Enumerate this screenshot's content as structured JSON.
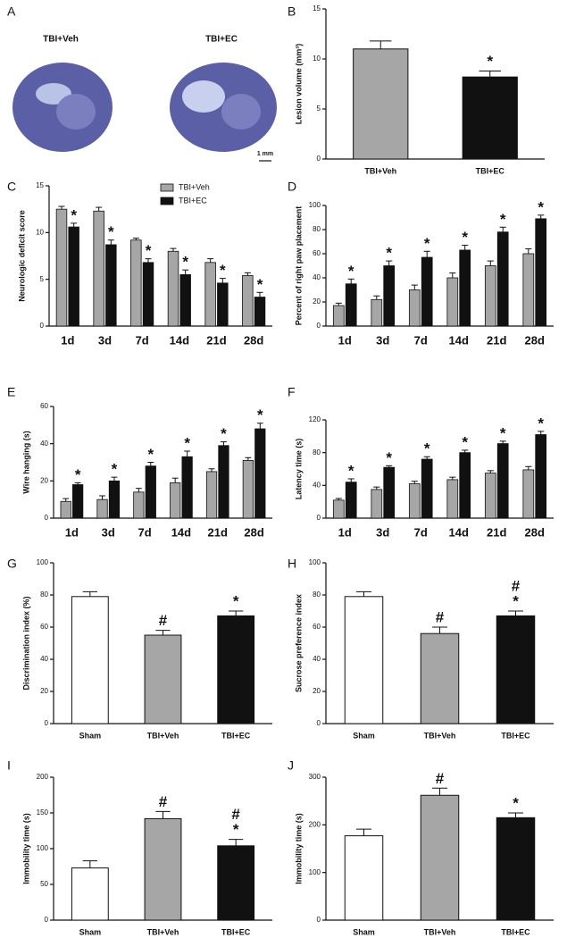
{
  "panel_a": {
    "panel_label": "A",
    "captions": [
      "TBI+Veh",
      "TBI+EC"
    ],
    "scale_bar": "1 mm"
  },
  "chart_data": [
    {
      "type": "bar",
      "panel_label": "B",
      "ylabel": "Lesion volume (mm³)",
      "categories": [
        "TBI+Veh",
        "TBI+EC"
      ],
      "values": [
        11,
        8.2
      ],
      "errors": [
        0.8,
        0.6
      ],
      "colors": [
        "#a6a6a6",
        "#111111"
      ],
      "annotations": [
        null,
        [
          "*"
        ]
      ],
      "ylim": [
        0,
        15
      ],
      "yticks": [
        0,
        5,
        10,
        15
      ]
    },
    {
      "type": "grouped-bar",
      "panel_label": "C",
      "ylabel": "Neurologic deficit score",
      "categories": [
        "1d",
        "3d",
        "7d",
        "14d",
        "21d",
        "28d"
      ],
      "legend": "top",
      "series": [
        {
          "name": "TBI+Veh",
          "color": "#a6a6a6",
          "values": [
            12.5,
            12.3,
            9.2,
            8,
            6.8,
            5.4
          ],
          "errors": [
            0.3,
            0.4,
            0.2,
            0.3,
            0.4,
            0.3
          ],
          "annotations": null
        },
        {
          "name": "TBI+EC",
          "color": "#111111",
          "values": [
            10.6,
            8.7,
            6.8,
            5.5,
            4.6,
            3.1
          ],
          "errors": [
            0.4,
            0.5,
            0.4,
            0.5,
            0.5,
            0.5
          ],
          "annotations": [
            "*",
            "*",
            "*",
            "*",
            "*",
            "*"
          ]
        }
      ],
      "ylim": [
        0,
        15
      ],
      "yticks": [
        0,
        5,
        10,
        15
      ]
    },
    {
      "type": "grouped-bar",
      "panel_label": "D",
      "ylabel": "Percent of right paw placement",
      "categories": [
        "1d",
        "3d",
        "7d",
        "14d",
        "21d",
        "28d"
      ],
      "series": [
        {
          "name": "TBI+Veh",
          "color": "#a6a6a6",
          "values": [
            17,
            22,
            30,
            40,
            50,
            60
          ],
          "errors": [
            2,
            3,
            4,
            4,
            4,
            4
          ],
          "annotations": null
        },
        {
          "name": "TBI+EC",
          "color": "#111111",
          "values": [
            35,
            50,
            57,
            63,
            78,
            89
          ],
          "errors": [
            4,
            4,
            5,
            4,
            4,
            3
          ],
          "annotations": [
            "*",
            "*",
            "*",
            "*",
            "*",
            "*"
          ]
        }
      ],
      "ylim": [
        0,
        100
      ],
      "yticks": [
        0,
        20,
        40,
        60,
        80,
        100
      ]
    },
    {
      "type": "grouped-bar",
      "panel_label": "E",
      "ylabel": "Wire hanging (s)",
      "categories": [
        "1d",
        "3d",
        "7d",
        "14d",
        "21d",
        "28d"
      ],
      "series": [
        {
          "name": "TBI+Veh",
          "color": "#a6a6a6",
          "values": [
            9,
            10,
            14,
            19,
            25,
            31
          ],
          "errors": [
            1.5,
            2,
            2,
            2.5,
            1.5,
            1.5
          ],
          "annotations": null
        },
        {
          "name": "TBI+EC",
          "color": "#111111",
          "values": [
            18,
            20,
            28,
            33,
            39,
            48
          ],
          "errors": [
            1,
            2,
            2,
            3,
            2,
            3
          ],
          "annotations": [
            "*",
            "*",
            "*",
            "*",
            "*",
            "*"
          ]
        }
      ],
      "ylim": [
        0,
        60
      ],
      "yticks": [
        0,
        20,
        40,
        60
      ]
    },
    {
      "type": "grouped-bar",
      "panel_label": "F",
      "ylabel": "Latency time (s)",
      "categories": [
        "1d",
        "3d",
        "7d",
        "14d",
        "21d",
        "28d"
      ],
      "series": [
        {
          "name": "TBI+Veh",
          "color": "#a6a6a6",
          "values": [
            22,
            35,
            42,
            47,
            55,
            59
          ],
          "errors": [
            2,
            3,
            3,
            3,
            3,
            4
          ],
          "annotations": null
        },
        {
          "name": "TBI+EC",
          "color": "#111111",
          "values": [
            44,
            62,
            72,
            80,
            91,
            102
          ],
          "errors": [
            4,
            2,
            3,
            3,
            3,
            4
          ],
          "annotations": [
            "*",
            "*",
            "*",
            "*",
            "*",
            "*"
          ]
        }
      ],
      "ylim": [
        0,
        120
      ],
      "yticks": [
        0,
        40,
        80,
        120
      ]
    },
    {
      "type": "bar",
      "panel_label": "G",
      "ylabel": "Discrimination index (%)",
      "categories": [
        "Sham",
        "TBI+Veh",
        "TBI+EC"
      ],
      "values": [
        79,
        55,
        67
      ],
      "errors": [
        3,
        3,
        3
      ],
      "colors": [
        "#ffffff",
        "#a6a6a6",
        "#111111"
      ],
      "annotations": [
        null,
        [
          "#"
        ],
        [
          "*"
        ]
      ],
      "ylim": [
        0,
        100
      ],
      "yticks": [
        0,
        20,
        40,
        60,
        80,
        100
      ]
    },
    {
      "type": "bar",
      "panel_label": "H",
      "ylabel": "Sucrose preference index",
      "categories": [
        "Sham",
        "TBI+Veh",
        "TBI+EC"
      ],
      "values": [
        79,
        56,
        67
      ],
      "errors": [
        3,
        4,
        3
      ],
      "colors": [
        "#ffffff",
        "#a6a6a6",
        "#111111"
      ],
      "annotations": [
        null,
        [
          "#"
        ],
        [
          "#",
          "*"
        ]
      ],
      "ylim": [
        0,
        100
      ],
      "yticks": [
        0,
        20,
        40,
        60,
        80,
        100
      ]
    },
    {
      "type": "bar",
      "panel_label": "I",
      "ylabel": "Immobility time (s)",
      "categories": [
        "Sham",
        "TBI+Veh",
        "TBI+EC"
      ],
      "values": [
        73,
        142,
        104
      ],
      "errors": [
        10,
        10,
        9
      ],
      "colors": [
        "#ffffff",
        "#a6a6a6",
        "#111111"
      ],
      "annotations": [
        null,
        [
          "#"
        ],
        [
          "#",
          "*"
        ]
      ],
      "ylim": [
        0,
        200
      ],
      "yticks": [
        0,
        50,
        100,
        150,
        200
      ]
    },
    {
      "type": "bar",
      "panel_label": "J",
      "ylabel": "Immobility time (s)",
      "categories": [
        "Sham",
        "TBI+Veh",
        "TBI+EC"
      ],
      "values": [
        177,
        262,
        215
      ],
      "errors": [
        14,
        15,
        10
      ],
      "colors": [
        "#ffffff",
        "#a6a6a6",
        "#111111"
      ],
      "annotations": [
        null,
        [
          "#"
        ],
        [
          "*"
        ]
      ],
      "ylim": [
        0,
        300
      ],
      "yticks": [
        0,
        100,
        200,
        300
      ]
    }
  ]
}
